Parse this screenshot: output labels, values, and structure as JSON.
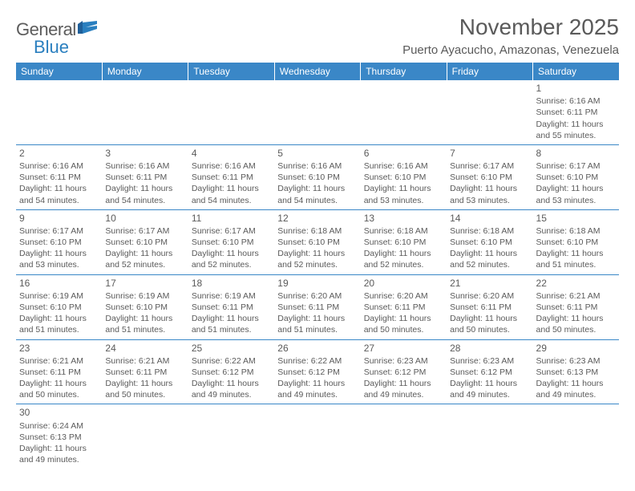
{
  "brand": {
    "word1": "General",
    "word2": "Blue",
    "accent_color": "#2a7fbf"
  },
  "title": "November 2025",
  "location": "Puerto Ayacucho, Amazonas, Venezuela",
  "header_bg": "#3a87c7",
  "header_fg": "#ffffff",
  "rule_color": "#3a87c7",
  "text_color": "#5a5a5a",
  "weekdays": [
    "Sunday",
    "Monday",
    "Tuesday",
    "Wednesday",
    "Thursday",
    "Friday",
    "Saturday"
  ],
  "cell_fontsize": 10.5,
  "rows": [
    [
      null,
      null,
      null,
      null,
      null,
      null,
      {
        "n": "1",
        "sunrise": "Sunrise: 6:16 AM",
        "sunset": "Sunset: 6:11 PM",
        "daylight": "Daylight: 11 hours and 55 minutes."
      }
    ],
    [
      {
        "n": "2",
        "sunrise": "Sunrise: 6:16 AM",
        "sunset": "Sunset: 6:11 PM",
        "daylight": "Daylight: 11 hours and 54 minutes."
      },
      {
        "n": "3",
        "sunrise": "Sunrise: 6:16 AM",
        "sunset": "Sunset: 6:11 PM",
        "daylight": "Daylight: 11 hours and 54 minutes."
      },
      {
        "n": "4",
        "sunrise": "Sunrise: 6:16 AM",
        "sunset": "Sunset: 6:11 PM",
        "daylight": "Daylight: 11 hours and 54 minutes."
      },
      {
        "n": "5",
        "sunrise": "Sunrise: 6:16 AM",
        "sunset": "Sunset: 6:10 PM",
        "daylight": "Daylight: 11 hours and 54 minutes."
      },
      {
        "n": "6",
        "sunrise": "Sunrise: 6:16 AM",
        "sunset": "Sunset: 6:10 PM",
        "daylight": "Daylight: 11 hours and 53 minutes."
      },
      {
        "n": "7",
        "sunrise": "Sunrise: 6:17 AM",
        "sunset": "Sunset: 6:10 PM",
        "daylight": "Daylight: 11 hours and 53 minutes."
      },
      {
        "n": "8",
        "sunrise": "Sunrise: 6:17 AM",
        "sunset": "Sunset: 6:10 PM",
        "daylight": "Daylight: 11 hours and 53 minutes."
      }
    ],
    [
      {
        "n": "9",
        "sunrise": "Sunrise: 6:17 AM",
        "sunset": "Sunset: 6:10 PM",
        "daylight": "Daylight: 11 hours and 53 minutes."
      },
      {
        "n": "10",
        "sunrise": "Sunrise: 6:17 AM",
        "sunset": "Sunset: 6:10 PM",
        "daylight": "Daylight: 11 hours and 52 minutes."
      },
      {
        "n": "11",
        "sunrise": "Sunrise: 6:17 AM",
        "sunset": "Sunset: 6:10 PM",
        "daylight": "Daylight: 11 hours and 52 minutes."
      },
      {
        "n": "12",
        "sunrise": "Sunrise: 6:18 AM",
        "sunset": "Sunset: 6:10 PM",
        "daylight": "Daylight: 11 hours and 52 minutes."
      },
      {
        "n": "13",
        "sunrise": "Sunrise: 6:18 AM",
        "sunset": "Sunset: 6:10 PM",
        "daylight": "Daylight: 11 hours and 52 minutes."
      },
      {
        "n": "14",
        "sunrise": "Sunrise: 6:18 AM",
        "sunset": "Sunset: 6:10 PM",
        "daylight": "Daylight: 11 hours and 52 minutes."
      },
      {
        "n": "15",
        "sunrise": "Sunrise: 6:18 AM",
        "sunset": "Sunset: 6:10 PM",
        "daylight": "Daylight: 11 hours and 51 minutes."
      }
    ],
    [
      {
        "n": "16",
        "sunrise": "Sunrise: 6:19 AM",
        "sunset": "Sunset: 6:10 PM",
        "daylight": "Daylight: 11 hours and 51 minutes."
      },
      {
        "n": "17",
        "sunrise": "Sunrise: 6:19 AM",
        "sunset": "Sunset: 6:10 PM",
        "daylight": "Daylight: 11 hours and 51 minutes."
      },
      {
        "n": "18",
        "sunrise": "Sunrise: 6:19 AM",
        "sunset": "Sunset: 6:11 PM",
        "daylight": "Daylight: 11 hours and 51 minutes."
      },
      {
        "n": "19",
        "sunrise": "Sunrise: 6:20 AM",
        "sunset": "Sunset: 6:11 PM",
        "daylight": "Daylight: 11 hours and 51 minutes."
      },
      {
        "n": "20",
        "sunrise": "Sunrise: 6:20 AM",
        "sunset": "Sunset: 6:11 PM",
        "daylight": "Daylight: 11 hours and 50 minutes."
      },
      {
        "n": "21",
        "sunrise": "Sunrise: 6:20 AM",
        "sunset": "Sunset: 6:11 PM",
        "daylight": "Daylight: 11 hours and 50 minutes."
      },
      {
        "n": "22",
        "sunrise": "Sunrise: 6:21 AM",
        "sunset": "Sunset: 6:11 PM",
        "daylight": "Daylight: 11 hours and 50 minutes."
      }
    ],
    [
      {
        "n": "23",
        "sunrise": "Sunrise: 6:21 AM",
        "sunset": "Sunset: 6:11 PM",
        "daylight": "Daylight: 11 hours and 50 minutes."
      },
      {
        "n": "24",
        "sunrise": "Sunrise: 6:21 AM",
        "sunset": "Sunset: 6:11 PM",
        "daylight": "Daylight: 11 hours and 50 minutes."
      },
      {
        "n": "25",
        "sunrise": "Sunrise: 6:22 AM",
        "sunset": "Sunset: 6:12 PM",
        "daylight": "Daylight: 11 hours and 49 minutes."
      },
      {
        "n": "26",
        "sunrise": "Sunrise: 6:22 AM",
        "sunset": "Sunset: 6:12 PM",
        "daylight": "Daylight: 11 hours and 49 minutes."
      },
      {
        "n": "27",
        "sunrise": "Sunrise: 6:23 AM",
        "sunset": "Sunset: 6:12 PM",
        "daylight": "Daylight: 11 hours and 49 minutes."
      },
      {
        "n": "28",
        "sunrise": "Sunrise: 6:23 AM",
        "sunset": "Sunset: 6:12 PM",
        "daylight": "Daylight: 11 hours and 49 minutes."
      },
      {
        "n": "29",
        "sunrise": "Sunrise: 6:23 AM",
        "sunset": "Sunset: 6:13 PM",
        "daylight": "Daylight: 11 hours and 49 minutes."
      }
    ],
    [
      {
        "n": "30",
        "sunrise": "Sunrise: 6:24 AM",
        "sunset": "Sunset: 6:13 PM",
        "daylight": "Daylight: 11 hours and 49 minutes."
      },
      null,
      null,
      null,
      null,
      null,
      null
    ]
  ]
}
